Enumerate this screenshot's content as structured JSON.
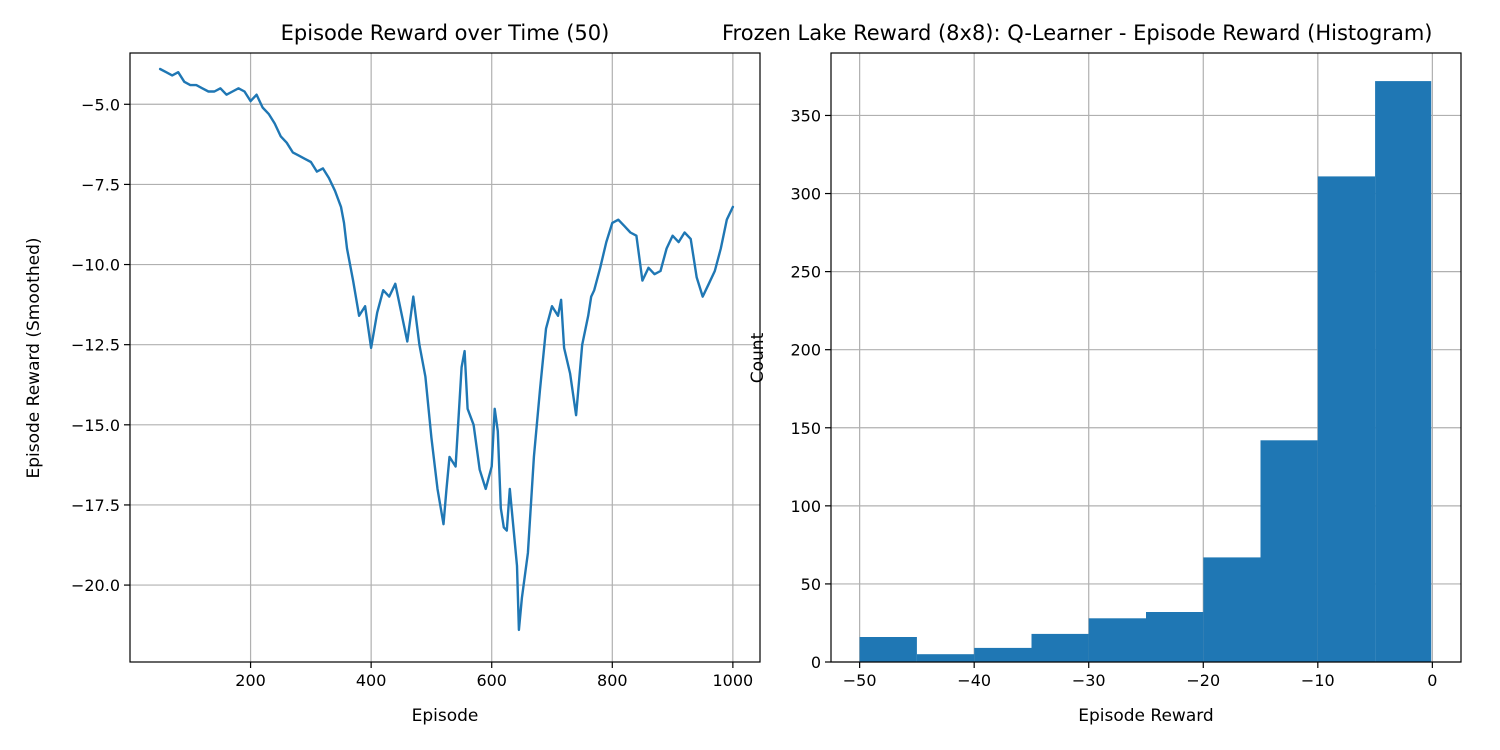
{
  "chart_data": [
    {
      "type": "line",
      "title": "Episode Reward over Time (50)",
      "xlabel": "Episode",
      "ylabel": "Episode Reward (Smoothed)",
      "xlim": [
        0,
        1045
      ],
      "ylim": [
        -22.4,
        -3.4
      ],
      "xticks": [
        200,
        400,
        600,
        800,
        1000
      ],
      "xtick_labels": [
        "200",
        "400",
        "600",
        "800",
        "1000"
      ],
      "yticks": [
        -5.0,
        -7.5,
        -10.0,
        -12.5,
        -15.0,
        -17.5,
        -20.0
      ],
      "ytick_labels": [
        "−5.0",
        "−7.5",
        "−10.0",
        "−12.5",
        "−15.0",
        "−17.5",
        "−20.0"
      ],
      "grid": true,
      "series": [
        {
          "color": "#1f77b4",
          "x": [
            50,
            60,
            70,
            80,
            90,
            100,
            110,
            120,
            130,
            140,
            150,
            160,
            170,
            180,
            190,
            200,
            210,
            220,
            230,
            240,
            250,
            260,
            270,
            280,
            290,
            300,
            310,
            320,
            330,
            340,
            350,
            355,
            360,
            370,
            380,
            390,
            400,
            410,
            420,
            430,
            440,
            450,
            460,
            470,
            480,
            490,
            500,
            510,
            520,
            525,
            530,
            540,
            550,
            555,
            560,
            570,
            580,
            590,
            600,
            605,
            610,
            615,
            620,
            625,
            630,
            635,
            640,
            642,
            645,
            650,
            660,
            670,
            680,
            690,
            700,
            710,
            715,
            720,
            730,
            740,
            750,
            760,
            765,
            770,
            780,
            790,
            800,
            810,
            820,
            830,
            840,
            850,
            860,
            870,
            880,
            890,
            900,
            910,
            920,
            930,
            940,
            950,
            960,
            970,
            980,
            990,
            1000
          ],
          "y": [
            -3.9,
            -4.0,
            -4.1,
            -4.0,
            -4.3,
            -4.4,
            -4.4,
            -4.5,
            -4.6,
            -4.6,
            -4.5,
            -4.7,
            -4.6,
            -4.5,
            -4.6,
            -4.9,
            -4.7,
            -5.1,
            -5.3,
            -5.6,
            -6.0,
            -6.2,
            -6.5,
            -6.6,
            -6.7,
            -6.8,
            -7.1,
            -7.0,
            -7.3,
            -7.7,
            -8.2,
            -8.7,
            -9.5,
            -10.5,
            -11.6,
            -11.3,
            -12.6,
            -11.5,
            -10.8,
            -11.0,
            -10.6,
            -11.5,
            -12.4,
            -11.0,
            -12.5,
            -13.5,
            -15.4,
            -17.0,
            -18.1,
            -17.0,
            -16.0,
            -16.3,
            -13.2,
            -12.7,
            -14.5,
            -15.0,
            -16.4,
            -17.0,
            -16.3,
            -14.5,
            -15.2,
            -17.6,
            -18.2,
            -18.3,
            -17.0,
            -18.0,
            -19.0,
            -19.4,
            -21.4,
            -20.4,
            -19.0,
            -16.0,
            -13.9,
            -12.0,
            -11.3,
            -11.6,
            -11.1,
            -12.6,
            -13.4,
            -14.7,
            -12.5,
            -11.6,
            -11.0,
            -10.8,
            -10.1,
            -9.3,
            -8.7,
            -8.6,
            -8.8,
            -9.0,
            -9.1,
            -10.5,
            -10.1,
            -10.3,
            -10.2,
            -9.5,
            -9.1,
            -9.3,
            -9.0,
            -9.2,
            -10.4,
            -11.0,
            -10.6,
            -10.2,
            -9.5,
            -8.6,
            -8.2
          ]
        }
      ]
    },
    {
      "type": "bar",
      "subtype": "histogram",
      "title": "Frozen Lake Reward (8x8): Q-Learner - Episode Reward (Histogram)",
      "xlabel": "Episode Reward",
      "ylabel": "Count",
      "xlim": [
        -52.5,
        2.5
      ],
      "ylim": [
        0,
        390
      ],
      "xticks": [
        -50,
        -40,
        -30,
        -20,
        -10,
        0
      ],
      "xtick_labels": [
        "−50",
        "−40",
        "−30",
        "−20",
        "−10",
        "0"
      ],
      "yticks": [
        0,
        50,
        100,
        150,
        200,
        250,
        300,
        350
      ],
      "ytick_labels": [
        "0",
        "50",
        "100",
        "150",
        "200",
        "250",
        "300",
        "350"
      ],
      "grid": true,
      "color": "#1f77b4",
      "bin_edges": [
        -50,
        -45,
        -40,
        -35,
        -30,
        -25,
        -20,
        -15,
        -10,
        -5,
        -0.1
      ],
      "values": [
        16,
        5,
        9,
        18,
        28,
        32,
        67,
        142,
        311,
        372
      ]
    }
  ]
}
